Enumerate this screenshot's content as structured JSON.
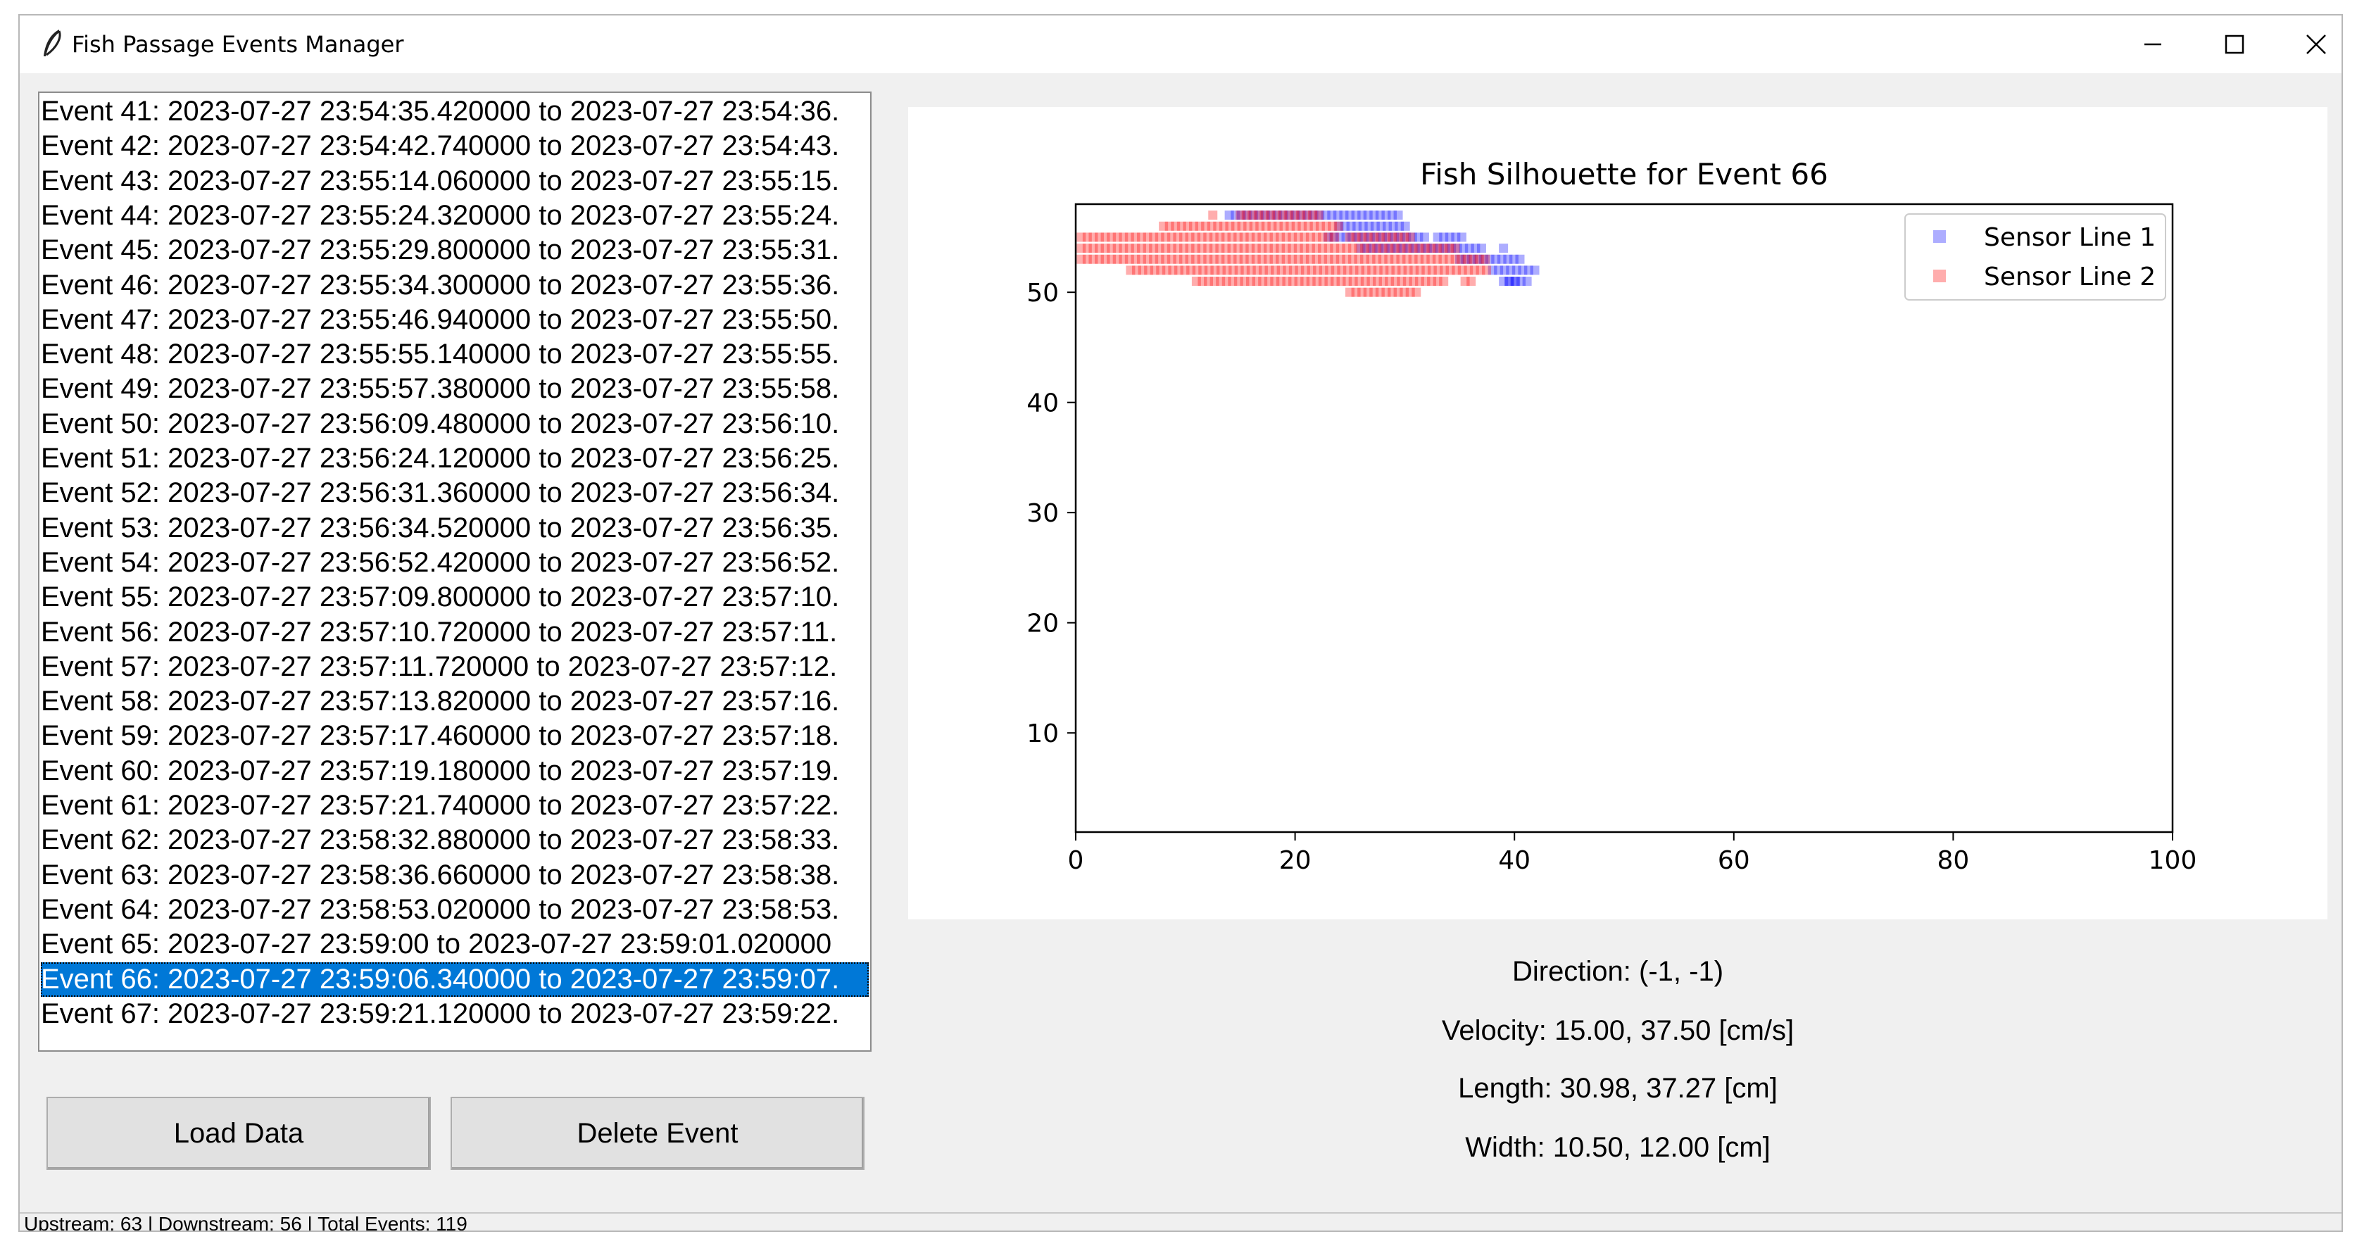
{
  "window": {
    "title": "Fish Passage Events Manager"
  },
  "events": [
    "Event 41: 2023-07-27 23:54:35.420000 to  2023-07-27 23:54:36.",
    "Event 42: 2023-07-27 23:54:42.740000 to  2023-07-27 23:54:43.",
    "Event 43: 2023-07-27 23:55:14.060000 to  2023-07-27 23:55:15.",
    "Event 44: 2023-07-27 23:55:24.320000 to  2023-07-27 23:55:24.",
    "Event 45: 2023-07-27 23:55:29.800000 to  2023-07-27 23:55:31.",
    "Event 46: 2023-07-27 23:55:34.300000 to  2023-07-27 23:55:36.",
    "Event 47: 2023-07-27 23:55:46.940000 to  2023-07-27 23:55:50.",
    "Event 48: 2023-07-27 23:55:55.140000 to  2023-07-27 23:55:55.",
    "Event 49: 2023-07-27 23:55:57.380000 to  2023-07-27 23:55:58.",
    "Event 50: 2023-07-27 23:56:09.480000 to  2023-07-27 23:56:10.",
    "Event 51: 2023-07-27 23:56:24.120000 to  2023-07-27 23:56:25.",
    "Event 52: 2023-07-27 23:56:31.360000 to  2023-07-27 23:56:34.",
    "Event 53: 2023-07-27 23:56:34.520000 to  2023-07-27 23:56:35.",
    "Event 54: 2023-07-27 23:56:52.420000 to  2023-07-27 23:56:52.",
    "Event 55: 2023-07-27 23:57:09.800000 to  2023-07-27 23:57:10.",
    "Event 56: 2023-07-27 23:57:10.720000 to  2023-07-27 23:57:11.",
    "Event 57: 2023-07-27 23:57:11.720000 to  2023-07-27 23:57:12.",
    "Event 58: 2023-07-27 23:57:13.820000 to  2023-07-27 23:57:16.",
    "Event 59: 2023-07-27 23:57:17.460000 to  2023-07-27 23:57:18.",
    "Event 60: 2023-07-27 23:57:19.180000 to  2023-07-27 23:57:19.",
    "Event 61: 2023-07-27 23:57:21.740000 to  2023-07-27 23:57:22.",
    "Event 62: 2023-07-27 23:58:32.880000 to  2023-07-27 23:58:33.",
    "Event 63: 2023-07-27 23:58:36.660000 to  2023-07-27 23:58:38.",
    "Event 64: 2023-07-27 23:58:53.020000 to  2023-07-27 23:58:53.",
    "Event 65: 2023-07-27 23:59:00 to  2023-07-27 23:59:01.020000",
    "Event 66: 2023-07-27 23:59:06.340000 to  2023-07-27 23:59:07.",
    "Event 67: 2023-07-27 23:59:21.120000 to  2023-07-27 23:59:22."
  ],
  "selected_event": "Event 66: 2023-07-27 23:59:06.340000 to  2023-07-27 23:59:07.",
  "buttons": {
    "load": "Load Data",
    "delete": "Delete Event"
  },
  "info": {
    "direction": "Direction:  (-1, -1)",
    "velocity": "Velocity: 15.00, 37.50 [cm/s]",
    "length": "Length: 30.98, 37.27 [cm]",
    "width": "Width: 10.50, 12.00 [cm]"
  },
  "status": "Upstream: 63 | Downstream: 56 | Total Events: 119",
  "colors": {
    "selection": "#0078d7",
    "sensor1": "#0000ff",
    "sensor2": "#ff0000"
  },
  "chart_data": {
    "type": "scatter",
    "title": "Fish Silhouette for Event 66",
    "xlabel": "",
    "ylabel": "",
    "xlim": [
      0,
      100
    ],
    "ylim": [
      1,
      58
    ],
    "xticks": [
      0,
      20,
      40,
      60,
      80,
      100
    ],
    "yticks": [
      10,
      20,
      30,
      40,
      50
    ],
    "legend_position": "top-right",
    "marker": "square",
    "series": [
      {
        "name": "Sensor Line 1",
        "color": "#0000ff",
        "segments": [
          {
            "y": 57,
            "x": [
              14,
              29.5
            ]
          },
          {
            "y": 56,
            "x": [
              24,
              30.5
            ]
          },
          {
            "y": 55,
            "x": [
              23,
              32
            ]
          },
          {
            "y": 55,
            "x": [
              33,
              35.5
            ]
          },
          {
            "y": 54,
            "x": [
              26,
              37.5
            ]
          },
          {
            "y": 54,
            "x": [
              39,
              39.5
            ]
          },
          {
            "y": 53,
            "x": [
              35,
              41
            ]
          },
          {
            "y": 52,
            "x": [
              38,
              42
            ]
          },
          {
            "y": 51,
            "x": [
              39,
              40.5
            ]
          },
          {
            "y": 51,
            "x": [
              39.5,
              41.5
            ]
          }
        ]
      },
      {
        "name": "Sensor Line 2",
        "color": "#ff0000",
        "segments": [
          {
            "y": 57,
            "x": [
              12.5,
              13
            ]
          },
          {
            "y": 57,
            "x": [
              15,
              22.5
            ]
          },
          {
            "y": 56,
            "x": [
              8,
              24
            ]
          },
          {
            "y": 55,
            "x": [
              0.5,
              24
            ]
          },
          {
            "y": 55,
            "x": [
              25,
              31
            ]
          },
          {
            "y": 54,
            "x": [
              0.5,
              35
            ]
          },
          {
            "y": 53,
            "x": [
              0.5,
              37.5
            ]
          },
          {
            "y": 52,
            "x": [
              5,
              37.5
            ]
          },
          {
            "y": 51,
            "x": [
              11,
              34
            ]
          },
          {
            "y": 51,
            "x": [
              35.5,
              36.5
            ]
          },
          {
            "y": 50,
            "x": [
              25,
              31.5
            ]
          }
        ]
      }
    ]
  }
}
